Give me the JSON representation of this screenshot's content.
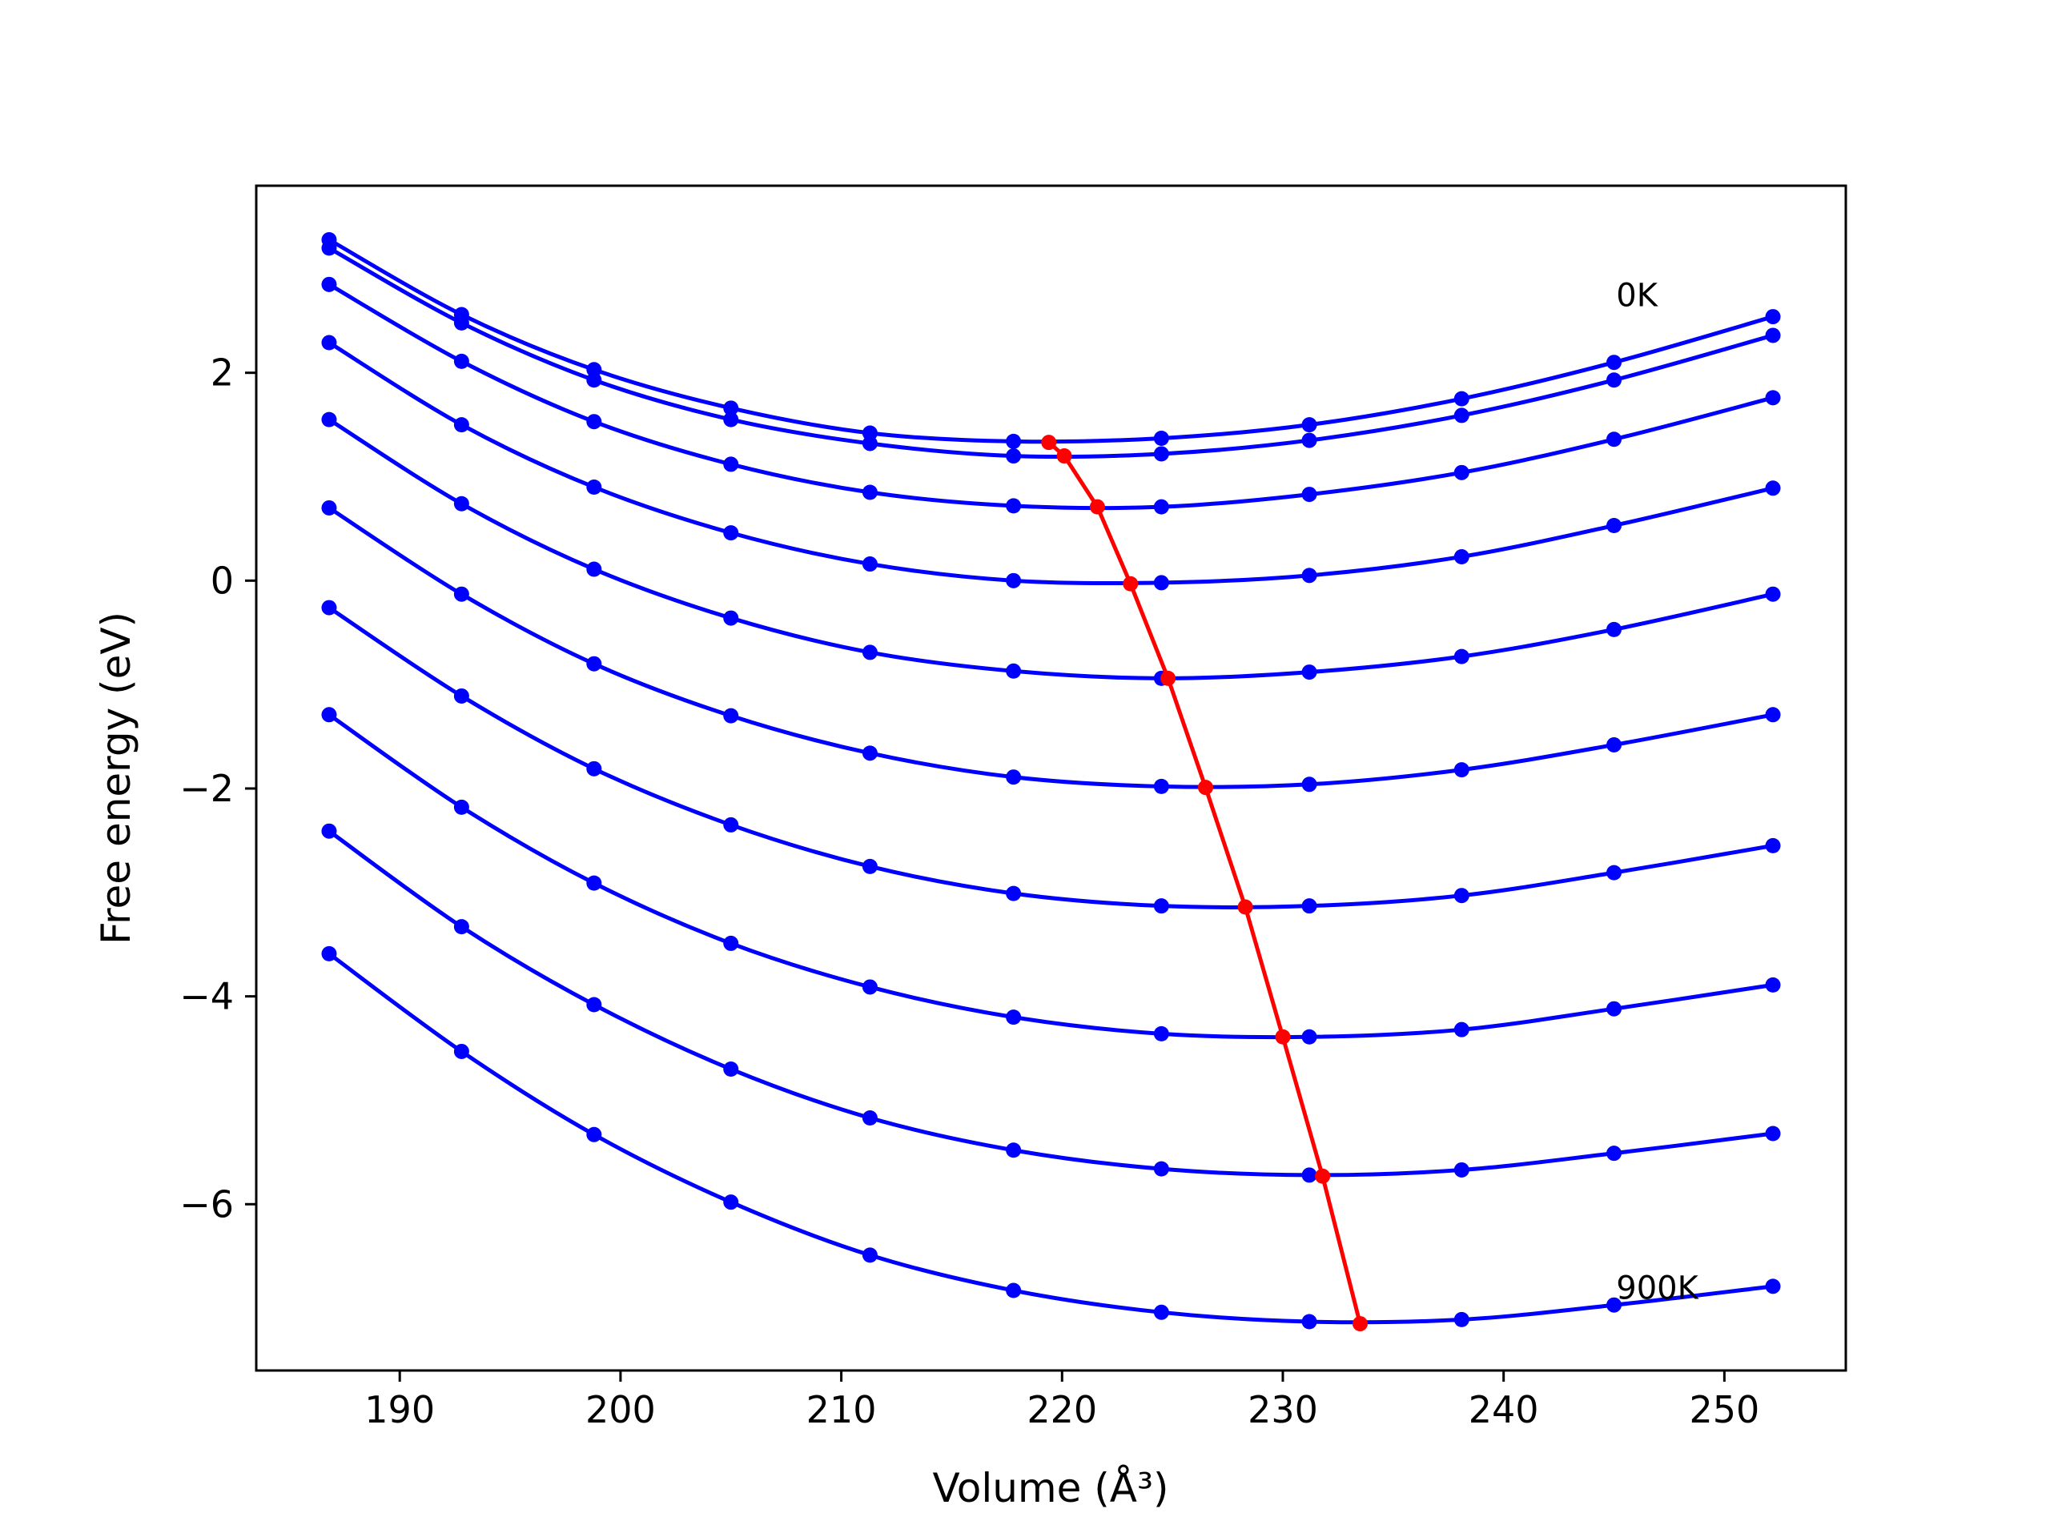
{
  "chart_data": {
    "type": "line",
    "xlabel": "Volume (Å³)",
    "ylabel": "Free energy (eV)",
    "xlim": [
      183.5,
      255.5
    ],
    "ylim": [
      -7.6,
      3.8
    ],
    "xticks": [
      190,
      200,
      210,
      220,
      230,
      240,
      250
    ],
    "yticks": [
      -6,
      -4,
      -2,
      0,
      2
    ],
    "ytick_labels": [
      "−6",
      "−4",
      "−2",
      "0",
      "2"
    ],
    "grid": false,
    "legend": "none",
    "colors": {
      "curves": "#0000ff",
      "minima": "#ff0000"
    },
    "x": [
      186.8,
      192.8,
      198.8,
      205.0,
      211.3,
      217.8,
      224.5,
      231.2,
      238.1,
      245.0,
      252.2
    ],
    "series": [
      {
        "values": [
          3.28,
          2.56,
          2.03,
          1.66,
          1.42,
          1.34,
          1.37,
          1.5,
          1.75,
          2.1,
          2.54
        ]
      },
      {
        "values": [
          3.2,
          2.48,
          1.93,
          1.55,
          1.32,
          1.2,
          1.22,
          1.35,
          1.59,
          1.93,
          2.36
        ]
      },
      {
        "values": [
          2.85,
          2.11,
          1.53,
          1.12,
          0.85,
          0.72,
          0.71,
          0.83,
          1.04,
          1.36,
          1.76
        ]
      },
      {
        "values": [
          2.29,
          1.5,
          0.9,
          0.46,
          0.16,
          0.0,
          -0.02,
          0.05,
          0.23,
          0.53,
          0.89
        ]
      },
      {
        "values": [
          1.55,
          0.74,
          0.11,
          -0.36,
          -0.69,
          -0.87,
          -0.94,
          -0.88,
          -0.73,
          -0.47,
          -0.13
        ]
      },
      {
        "values": [
          0.7,
          -0.13,
          -0.8,
          -1.3,
          -1.66,
          -1.89,
          -1.98,
          -1.96,
          -1.82,
          -1.58,
          -1.29
        ]
      },
      {
        "values": [
          -0.26,
          -1.11,
          -1.81,
          -2.35,
          -2.75,
          -3.01,
          -3.13,
          -3.13,
          -3.03,
          -2.81,
          -2.55
        ]
      },
      {
        "values": [
          -1.29,
          -2.18,
          -2.91,
          -3.49,
          -3.91,
          -4.2,
          -4.36,
          -4.39,
          -4.32,
          -4.12,
          -3.89
        ]
      },
      {
        "values": [
          -2.41,
          -3.33,
          -4.08,
          -4.7,
          -5.17,
          -5.48,
          -5.66,
          -5.72,
          -5.67,
          -5.51,
          -5.32
        ]
      },
      {
        "values": [
          -3.59,
          -4.53,
          -5.33,
          -5.98,
          -6.49,
          -6.83,
          -7.04,
          -7.13,
          -7.11,
          -6.97,
          -6.79
        ]
      }
    ],
    "minima": {
      "x": [
        219.4,
        220.1,
        221.6,
        223.1,
        224.8,
        226.5,
        228.3,
        230.0,
        231.8,
        233.5
      ],
      "y": [
        1.33,
        1.2,
        0.71,
        -0.03,
        -0.94,
        -1.99,
        -3.14,
        -4.39,
        -5.73,
        -7.15
      ]
    },
    "annotations": [
      {
        "text": "0K",
        "x": 245.1,
        "y": 2.64
      },
      {
        "text": "900K",
        "x": 245.1,
        "y": -6.91
      }
    ]
  }
}
